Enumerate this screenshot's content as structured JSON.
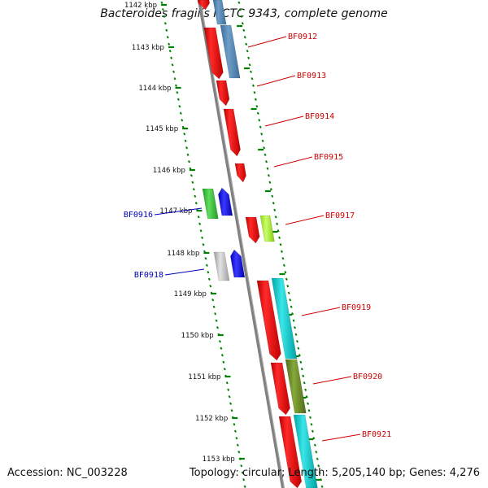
{
  "title": "Bacteroides fragilis NCTC 9343, complete genome",
  "footer": {
    "accession": "Accession: NC_003228",
    "summary": "Topology: circular; Length: 5,205,140 bp; Genes: 4,276"
  },
  "colors": {
    "backbone": "#808080",
    "tick": "#008000",
    "forward_label": "#cc0000",
    "reverse_label": "#0000bb"
  },
  "ticks": [
    "1142 kbp",
    "1143 kbp",
    "1144 kbp",
    "1145 kbp",
    "1146 kbp",
    "1147 kbp",
    "1148 kbp",
    "1149 kbp",
    "1150 kbp",
    "1151 kbp",
    "1152 kbp",
    "1153 kbp"
  ],
  "genes_forward": [
    {
      "label": "BF0912",
      "color": "#ff0000",
      "cog": "#4682b4"
    },
    {
      "label": "BF0913",
      "color": "#ff0000"
    },
    {
      "label": "BF0914",
      "color": "#ff0000"
    },
    {
      "label": "BF0915",
      "color": "#ff0000"
    },
    {
      "label": "BF0917",
      "color": "#ff0000",
      "cog": "#adff2f"
    },
    {
      "label": "BF0919",
      "color": "#ff0000",
      "cog": "#00ced1"
    },
    {
      "label": "BF0920",
      "color": "#ff0000",
      "cog": "#6b8e23"
    },
    {
      "label": "BF0921",
      "color": "#ff0000",
      "cog": "#00ced1"
    }
  ],
  "genes_reverse": [
    {
      "label": "BF0916",
      "color": "#0000ff",
      "cog": "#32cd32"
    },
    {
      "label": "BF0918",
      "color": "#0000ff",
      "cog": "#c0c0c0"
    }
  ]
}
